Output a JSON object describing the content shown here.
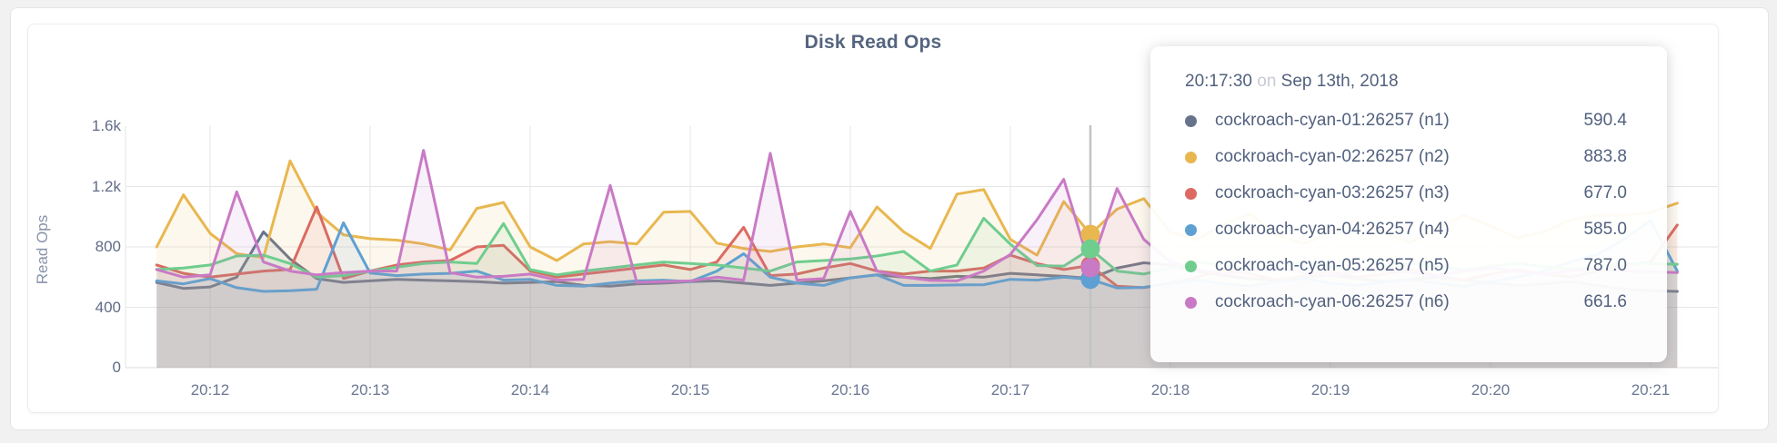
{
  "page": {
    "title": "Disk Read Ops"
  },
  "y_axis": {
    "label": "Read Ops"
  },
  "tooltip": {
    "time": "20:17:30",
    "on_word": "on",
    "date": "Sep 13th, 2018"
  },
  "chart_data": {
    "type": "area",
    "title": "Disk Read Ops",
    "ylabel": "Read Ops",
    "ylim": [
      0,
      1600
    ],
    "grid": {
      "h_lines": [
        400,
        800,
        1200
      ],
      "v_lines": "every-minute",
      "top_line": false
    },
    "y_ticks": [
      {
        "v": 0,
        "label": "0"
      },
      {
        "v": 400,
        "label": "400"
      },
      {
        "v": 800,
        "label": "800"
      },
      {
        "v": 1200,
        "label": "1.2k"
      },
      {
        "v": 1600,
        "label": "1.6k"
      }
    ],
    "x_ticks": [
      "20:12",
      "20:13",
      "20:14",
      "20:15",
      "20:16",
      "20:17",
      "20:18",
      "20:19",
      "20:20",
      "20:21"
    ],
    "x_start": "20:11:40",
    "x_step_seconds": 10,
    "hover": {
      "index": 35,
      "time": "20:17:30"
    },
    "legend_position": "tooltip",
    "series": [
      {
        "id": "n1",
        "name": "cockroach-cyan-01:26257 (n1)",
        "color": "#67738c",
        "values": [
          565,
          525,
          535,
          600,
          900,
          720,
          590,
          565,
          575,
          585,
          580,
          575,
          570,
          560,
          565,
          570,
          545,
          540,
          555,
          560,
          570,
          575,
          560,
          545,
          560,
          575,
          595,
          615,
          600,
          590,
          605,
          600,
          625,
          615,
          605,
          590.4,
          660,
          695,
          680,
          640,
          610,
          590,
          580,
          600,
          615,
          590,
          570,
          585,
          600,
          580,
          560,
          545,
          555,
          570,
          545,
          520,
          510,
          505
        ]
      },
      {
        "id": "n2",
        "name": "cockroach-cyan-02:26257 (n2)",
        "color": "#e8b750",
        "values": [
          800,
          1145,
          890,
          755,
          730,
          1370,
          1030,
          880,
          855,
          845,
          820,
          780,
          1055,
          1095,
          800,
          710,
          820,
          835,
          820,
          1030,
          1035,
          825,
          790,
          770,
          800,
          820,
          795,
          1065,
          900,
          790,
          1150,
          1180,
          850,
          745,
          1100,
          883.8,
          1050,
          1120,
          900,
          850,
          950,
          1020,
          880,
          820,
          900,
          980,
          890,
          830,
          920,
          1010,
          940,
          860,
          900,
          980,
          1010,
          1010,
          1030,
          1090
        ]
      },
      {
        "id": "n3",
        "name": "cockroach-cyan-03:26257 (n3)",
        "color": "#dc6a62",
        "values": [
          680,
          625,
          600,
          620,
          640,
          650,
          1065,
          590,
          640,
          680,
          700,
          710,
          800,
          810,
          640,
          600,
          620,
          640,
          660,
          680,
          650,
          700,
          930,
          610,
          620,
          660,
          690,
          640,
          620,
          640,
          640,
          660,
          745,
          690,
          650,
          677,
          540,
          530,
          560,
          600,
          650,
          620,
          580,
          610,
          640,
          600,
          620,
          650,
          610,
          580,
          620,
          650,
          620,
          600,
          640,
          680,
          700,
          945
        ]
      },
      {
        "id": "n4",
        "name": "cockroach-cyan-04:26257 (n4)",
        "color": "#5ea0d3",
        "values": [
          575,
          555,
          590,
          530,
          505,
          510,
          520,
          960,
          627,
          610,
          620,
          625,
          640,
          580,
          585,
          545,
          540,
          560,
          575,
          580,
          570,
          640,
          755,
          600,
          560,
          545,
          595,
          615,
          545,
          545,
          548,
          550,
          585,
          580,
          600,
          585,
          528,
          532,
          560,
          580,
          555,
          540,
          570,
          590,
          560,
          545,
          565,
          585,
          560,
          540,
          570,
          600,
          640,
          700,
          750,
          850,
          975,
          640
        ]
      },
      {
        "id": "n5",
        "name": "cockroach-cyan-05:26257 (n5)",
        "color": "#6fcd8e",
        "values": [
          650,
          660,
          680,
          740,
          745,
          690,
          600,
          610,
          640,
          665,
          690,
          700,
          690,
          955,
          650,
          615,
          640,
          660,
          680,
          700,
          690,
          680,
          660,
          640,
          700,
          710,
          720,
          740,
          770,
          640,
          680,
          990,
          818,
          676,
          673,
          787,
          640,
          620,
          660,
          700,
          680,
          650,
          670,
          700,
          670,
          640,
          660,
          690,
          670,
          650,
          670,
          690,
          670,
          650,
          670,
          690,
          690,
          685
        ]
      },
      {
        "id": "n6",
        "name": "cockroach-cyan-06:26257 (n6)",
        "color": "#c97ac5",
        "values": [
          650,
          600,
          615,
          1165,
          700,
          640,
          615,
          630,
          640,
          640,
          1440,
          630,
          600,
          605,
          620,
          580,
          585,
          1208,
          565,
          570,
          575,
          600,
          580,
          1420,
          580,
          590,
          1035,
          640,
          600,
          578,
          575,
          640,
          750,
          980,
          1248,
          661.6,
          1187,
          850,
          700,
          650,
          620,
          640,
          660,
          630,
          610,
          640,
          660,
          630,
          610,
          640,
          660,
          640,
          620,
          640,
          660,
          640,
          635,
          630
        ]
      }
    ],
    "colors": {
      "crosshair": "#c2c2c3",
      "grid": "#e6e6e8",
      "baseline": "#dbdbdd",
      "axis_text": "#5f6c87",
      "title_text": "#55657f"
    }
  }
}
